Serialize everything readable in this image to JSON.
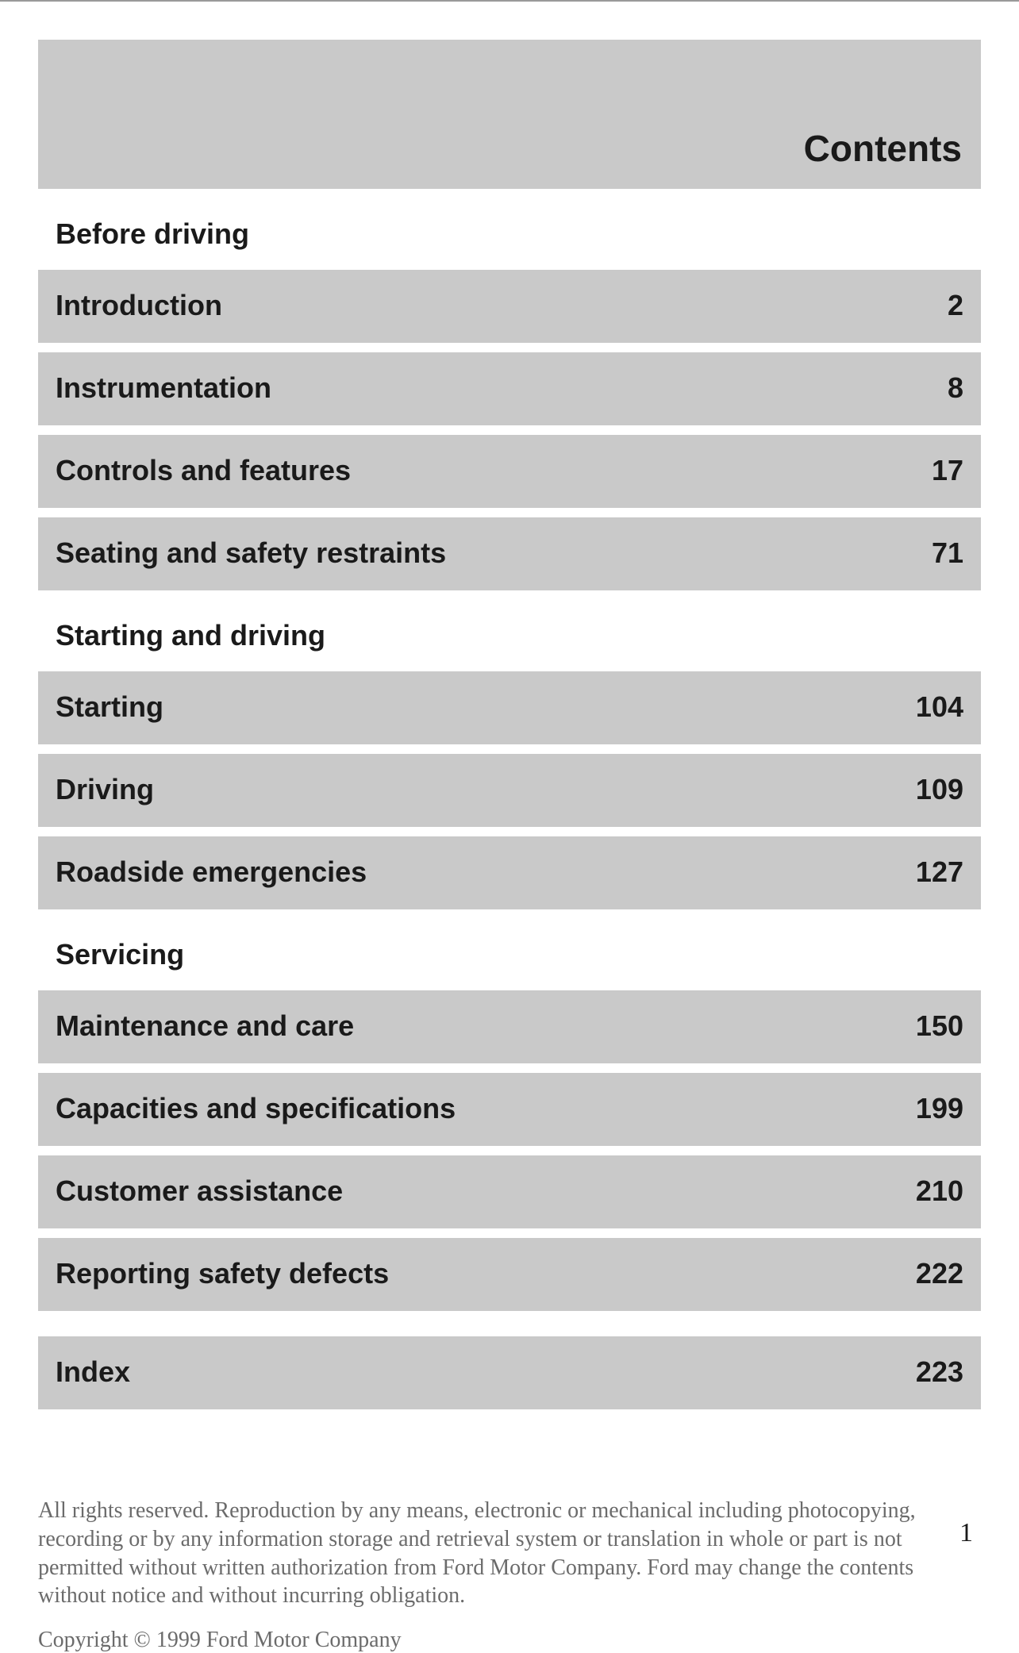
{
  "header": {
    "title": "Contents"
  },
  "sections": {
    "before_driving": "Before driving",
    "starting_and_driving": "Starting and driving",
    "servicing": "Servicing"
  },
  "entries": {
    "introduction": {
      "label": "Introduction",
      "page": "2"
    },
    "instrumentation": {
      "label": "Instrumentation",
      "page": "8"
    },
    "controls": {
      "label": "Controls and features",
      "page": "17"
    },
    "seating": {
      "label": "Seating and safety restraints",
      "page": "71"
    },
    "starting": {
      "label": "Starting",
      "page": "104"
    },
    "driving": {
      "label": "Driving",
      "page": "109"
    },
    "roadside": {
      "label": "Roadside emergencies",
      "page": "127"
    },
    "maintenance": {
      "label": "Maintenance and care",
      "page": "150"
    },
    "capacities": {
      "label": "Capacities and specifications",
      "page": "199"
    },
    "customer": {
      "label": "Customer assistance",
      "page": "210"
    },
    "reporting": {
      "label": "Reporting safety defects",
      "page": "222"
    },
    "index": {
      "label": "Index",
      "page": "223"
    }
  },
  "footer": {
    "rights": "All rights reserved. Reproduction by any means, electronic or mechanical including photocopying, recording or by any information storage and retrieval system or translation in whole or part is not permitted without written authorization from Ford Motor Company. Ford may change the contents without notice and without incurring obligation.",
    "copyright": "Copyright © 1999 Ford Motor Company"
  },
  "page_number": "1",
  "colors": {
    "bar_bg": "#c9c9c9",
    "page_bg": "#ffffff",
    "text": "#1a1a1a",
    "footer_text": "#6b6b6b"
  }
}
